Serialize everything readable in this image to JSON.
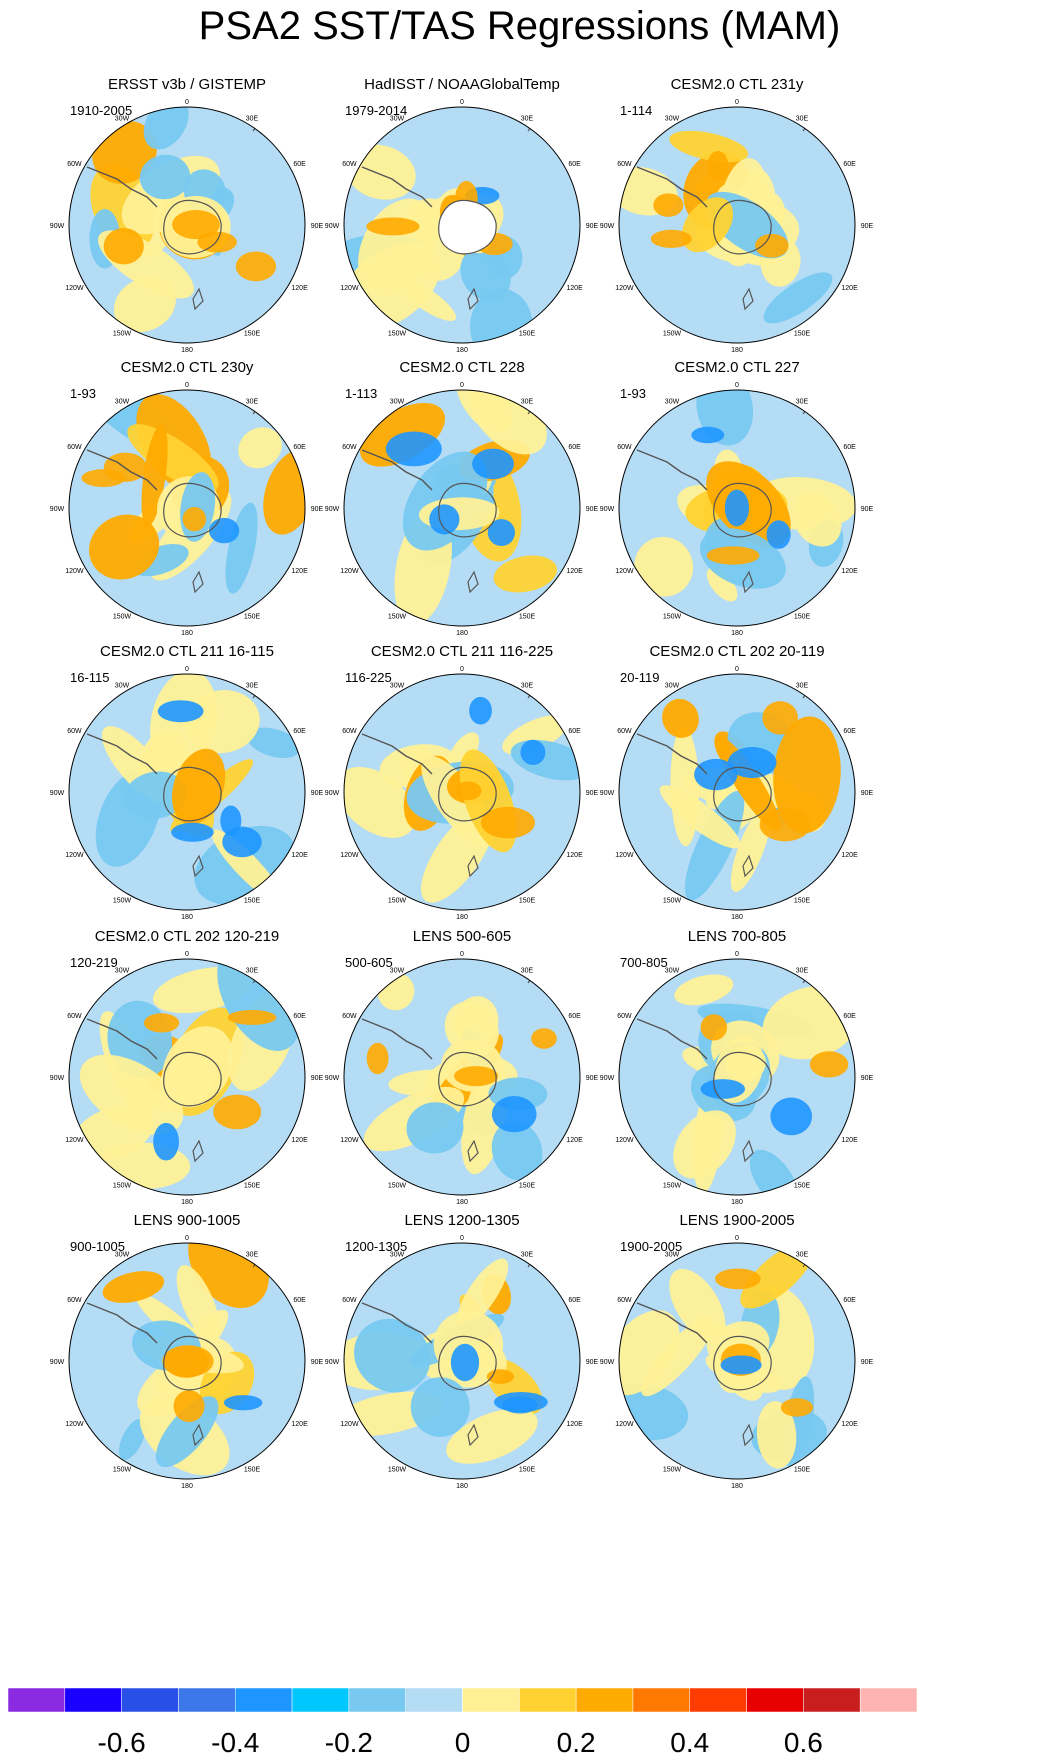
{
  "figure": {
    "title": "PSA2 SST/TAS Regressions (MAM)"
  },
  "chart_data": [
    {
      "type": "heatmap",
      "projection": "south-polar-stereographic",
      "title": "ERSST v3b / GISTEMP",
      "period": "1910-2005",
      "masked_land": false,
      "longitude_labels": [
        "0",
        "30E",
        "60E",
        "90E",
        "120E",
        "150E",
        "180",
        "150W",
        "120W",
        "90W",
        "60W",
        "30W"
      ]
    },
    {
      "type": "heatmap",
      "projection": "south-polar-stereographic",
      "title": "HadISST / NOAAGlobalTemp",
      "period": "1979-2014",
      "masked_land": true,
      "longitude_labels": [
        "0",
        "30E",
        "60E",
        "90E",
        "120E",
        "150E",
        "180",
        "150W",
        "120W",
        "90W",
        "60W",
        "30W"
      ]
    },
    {
      "type": "heatmap",
      "projection": "south-polar-stereographic",
      "title": "CESM2.0 CTL 231y",
      "period": "1-114",
      "masked_land": false,
      "longitude_labels": [
        "0",
        "30E",
        "60E",
        "90E",
        "120E",
        "150E",
        "180",
        "150W",
        "120W",
        "90W",
        "60W",
        "30W"
      ]
    },
    {
      "type": "heatmap",
      "projection": "south-polar-stereographic",
      "title": "CESM2.0 CTL 230y",
      "period": "1-93",
      "masked_land": false,
      "longitude_labels": [
        "0",
        "30E",
        "60E",
        "90E",
        "120E",
        "150E",
        "180",
        "150W",
        "120W",
        "90W",
        "60W",
        "30W"
      ]
    },
    {
      "type": "heatmap",
      "projection": "south-polar-stereographic",
      "title": "CESM2.0 CTL 228",
      "period": "1-113",
      "masked_land": false,
      "longitude_labels": [
        "0",
        "30E",
        "60E",
        "90E",
        "120E",
        "150E",
        "180",
        "150W",
        "120W",
        "90W",
        "60W",
        "30W"
      ]
    },
    {
      "type": "heatmap",
      "projection": "south-polar-stereographic",
      "title": "CESM2.0 CTL 227",
      "period": "1-93",
      "masked_land": false,
      "longitude_labels": [
        "0",
        "30E",
        "60E",
        "90E",
        "120E",
        "150E",
        "180",
        "150W",
        "120W",
        "90W",
        "60W",
        "30W"
      ]
    },
    {
      "type": "heatmap",
      "projection": "south-polar-stereographic",
      "title": "CESM2.0 CTL 211 16-115",
      "period": "16-115",
      "masked_land": false,
      "longitude_labels": [
        "0",
        "30E",
        "60E",
        "90E",
        "120E",
        "150E",
        "180",
        "150W",
        "120W",
        "90W",
        "60W",
        "30W"
      ]
    },
    {
      "type": "heatmap",
      "projection": "south-polar-stereographic",
      "title": "CESM2.0 CTL 211 116-225",
      "period": "116-225",
      "masked_land": false,
      "longitude_labels": [
        "0",
        "30E",
        "60E",
        "90E",
        "120E",
        "150E",
        "180",
        "150W",
        "120W",
        "90W",
        "60W",
        "30W"
      ]
    },
    {
      "type": "heatmap",
      "projection": "south-polar-stereographic",
      "title": "CESM2.0 CTL 202 20-119",
      "period": "20-119",
      "masked_land": false,
      "longitude_labels": [
        "0",
        "30E",
        "60E",
        "90E",
        "120E",
        "150E",
        "180",
        "150W",
        "120W",
        "90W",
        "60W",
        "30W"
      ]
    },
    {
      "type": "heatmap",
      "projection": "south-polar-stereographic",
      "title": "CESM2.0 CTL 202 120-219",
      "period": "120-219",
      "masked_land": false,
      "longitude_labels": [
        "0",
        "30E",
        "60E",
        "90E",
        "120E",
        "150E",
        "180",
        "150W",
        "120W",
        "90W",
        "60W",
        "30W"
      ]
    },
    {
      "type": "heatmap",
      "projection": "south-polar-stereographic",
      "title": "LENS 500-605",
      "period": "500-605",
      "masked_land": false,
      "longitude_labels": [
        "0",
        "30E",
        "60E",
        "90E",
        "120E",
        "150E",
        "180",
        "150W",
        "120W",
        "90W",
        "60W",
        "30W"
      ]
    },
    {
      "type": "heatmap",
      "projection": "south-polar-stereographic",
      "title": "LENS 700-805",
      "period": "700-805",
      "masked_land": false,
      "longitude_labels": [
        "0",
        "30E",
        "60E",
        "90E",
        "120E",
        "150E",
        "180",
        "150W",
        "120W",
        "90W",
        "60W",
        "30W"
      ]
    },
    {
      "type": "heatmap",
      "projection": "south-polar-stereographic",
      "title": "LENS 900-1005",
      "period": "900-1005",
      "masked_land": false,
      "longitude_labels": [
        "0",
        "30E",
        "60E",
        "90E",
        "120E",
        "150E",
        "180",
        "150W",
        "120W",
        "90W",
        "60W",
        "30W"
      ]
    },
    {
      "type": "heatmap",
      "projection": "south-polar-stereographic",
      "title": "LENS 1200-1305",
      "period": "1200-1305",
      "masked_land": false,
      "longitude_labels": [
        "0",
        "30E",
        "60E",
        "90E",
        "120E",
        "150E",
        "180",
        "150W",
        "120W",
        "90W",
        "60W",
        "30W"
      ]
    },
    {
      "type": "heatmap",
      "projection": "south-polar-stereographic",
      "title": "LENS 1900-2005",
      "period": "1900-2005",
      "masked_land": false,
      "longitude_labels": [
        "0",
        "30E",
        "60E",
        "90E",
        "120E",
        "150E",
        "180",
        "150W",
        "120W",
        "90W",
        "60W",
        "30W"
      ]
    }
  ],
  "colorbar": {
    "colors": [
      "#8a2be2",
      "#1a00ff",
      "#2850e8",
      "#3c78ea",
      "#1e96ff",
      "#00c8ff",
      "#78c8f0",
      "#b4dcf5",
      "#fff096",
      "#ffd232",
      "#ffaa00",
      "#ff7800",
      "#ff3c00",
      "#e60000",
      "#c81e1e",
      "#ffb4b4"
    ],
    "tick_labels": [
      "-0.6",
      "-0.4",
      "-0.2",
      "0",
      "0.2",
      "0.4",
      "0.6"
    ]
  },
  "palette_named": {
    "ocean_light_blue": "#b4dcf5",
    "blue": "#78c8f0",
    "bright_blue": "#1e96ff",
    "yellow": "#fff096",
    "gold": "#ffd232",
    "orange": "#ffaa00",
    "coast": "#555555"
  }
}
